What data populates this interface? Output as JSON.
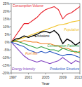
{
  "chart_data": {
    "type": "line",
    "x_label": "Year",
    "x": [
      1997,
      1998,
      1999,
      2000,
      2001,
      2002,
      2003,
      2004,
      2005,
      2006,
      2007,
      2008,
      2009,
      2010,
      2011,
      2012,
      2013
    ],
    "xlim": [
      1997,
      2013
    ],
    "xticks": [
      1997,
      2001,
      2005,
      2009,
      2013
    ],
    "ylim": [
      -20,
      25
    ],
    "yticks": [
      {
        "value": -20,
        "label": "-20%"
      },
      {
        "value": -15,
        "label": "-15%"
      },
      {
        "value": -10,
        "label": "-10%"
      },
      {
        "value": -5,
        "label": "-5%"
      },
      {
        "value": 0,
        "label": "0%"
      },
      {
        "value": 5,
        "label": "5%"
      },
      {
        "value": 10,
        "label": "10%"
      },
      {
        "value": 15,
        "label": "15%"
      },
      {
        "value": 20,
        "label": "20%"
      },
      {
        "value": 25,
        "label": "25%"
      }
    ],
    "grid": false,
    "series": [
      {
        "name": "Consumption Volume",
        "color": "#e8202a",
        "values": [
          0,
          4,
          8,
          12,
          12,
          14,
          16,
          19,
          21,
          22,
          23,
          21,
          15,
          18,
          19,
          21,
          23
        ]
      },
      {
        "name": "Population",
        "color": "#f0c020",
        "values": [
          0,
          1,
          2,
          3,
          4,
          5,
          6,
          7,
          8,
          9,
          10,
          11,
          11.5,
          12,
          13,
          13.5,
          14
        ]
      },
      {
        "name": "Emissions",
        "color": "#000000",
        "values": [
          0,
          2,
          2.5,
          4,
          3,
          4,
          5,
          6.5,
          7,
          6,
          7.5,
          5,
          -1,
          2,
          0.5,
          -2,
          0
        ]
      },
      {
        "name": "Fuel Mix",
        "color": "#f08020",
        "values": [
          0,
          0.5,
          0,
          1,
          0.5,
          0,
          0,
          -1,
          -1,
          -1,
          -2,
          -2.5,
          -4,
          -4,
          -5,
          -7,
          -6
        ]
      },
      {
        "name": "Energy Intensity",
        "color": "#8040c0",
        "values": [
          0,
          -3,
          -6,
          -9,
          -11,
          -12,
          -13,
          -12,
          -13,
          -14,
          -13,
          -12,
          -10,
          -12,
          -14,
          -12,
          -13
        ]
      },
      {
        "name": "Consumption Patterns",
        "color": "#30a040",
        "values": [
          0,
          1,
          0,
          -1,
          -2,
          -3,
          -4,
          -3,
          -4,
          -5,
          -5,
          -6,
          -4,
          -5,
          -6,
          -6,
          -7
        ]
      },
      {
        "name": "Production Structure",
        "color": "#2050c0",
        "values": [
          0,
          -1,
          -2,
          -3,
          -5,
          -6,
          -7,
          -6,
          -7,
          -6,
          -7,
          -8,
          -9,
          -8,
          -8,
          -9,
          -10
        ]
      }
    ]
  }
}
